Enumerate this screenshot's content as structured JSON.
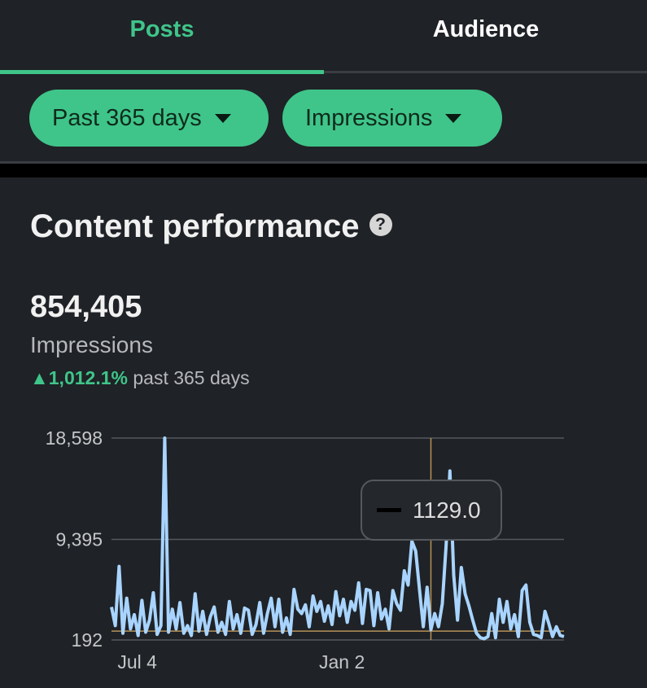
{
  "tabs": [
    {
      "label": "Posts",
      "active": true
    },
    {
      "label": "Audience",
      "active": false
    }
  ],
  "filters": {
    "range": "Past 365 days",
    "metric": "Impressions"
  },
  "section": {
    "title": "Content performance",
    "help_icon": "?"
  },
  "summary": {
    "total": "854,405",
    "metric_label": "Impressions",
    "change": "1,012.1%",
    "change_suffix": "past 365 days",
    "change_direction": "up"
  },
  "colors": {
    "accent": "#3fc58a",
    "line": "#a8d4ff",
    "crosshair": "#b8935a"
  },
  "tooltip": {
    "value": "1129.0"
  },
  "chart_data": {
    "type": "line",
    "ylabel": "Impressions",
    "ylim": [
      192,
      18598
    ],
    "yticks": [
      "18,598",
      "9,395",
      "192"
    ],
    "xticks": [
      {
        "label": "Jul 4",
        "index": 2
      },
      {
        "label": "Jan 2",
        "index": 55
      }
    ],
    "reference_value": 1000,
    "selected_index": 84,
    "values": [
      3200,
      1500,
      6900,
      800,
      4000,
      1200,
      2500,
      600,
      3800,
      900,
      2000,
      4500,
      700,
      1500,
      18598,
      900,
      3000,
      1200,
      3600,
      800,
      1500,
      600,
      4400,
      1000,
      2800,
      700,
      2300,
      3200,
      900,
      1800,
      700,
      3700,
      1200,
      2500,
      800,
      3100,
      2900,
      700,
      1600,
      3600,
      800,
      2600,
      4000,
      1400,
      3900,
      900,
      2200,
      700,
      4800,
      3000,
      2600,
      3400,
      1400,
      4200,
      2800,
      3700,
      1900,
      3300,
      1600,
      4600,
      2400,
      3900,
      1800,
      3700,
      2900,
      5400,
      1700,
      4800,
      4700,
      1500,
      4500,
      2100,
      3000,
      1200,
      4700,
      3500,
      2900,
      6500,
      5200,
      9200,
      8300,
      4800,
      1400,
      5000,
      1129,
      2600,
      1400,
      3500,
      8800,
      15600,
      6100,
      2000,
      6800,
      4400,
      3300,
      2000,
      800,
      400,
      300,
      500,
      2600,
      400,
      3900,
      1800,
      3700,
      1200,
      2500,
      500,
      4700,
      5200,
      1800,
      700,
      600,
      400,
      2800,
      1700,
      500,
      1400,
      600,
      500
    ]
  }
}
